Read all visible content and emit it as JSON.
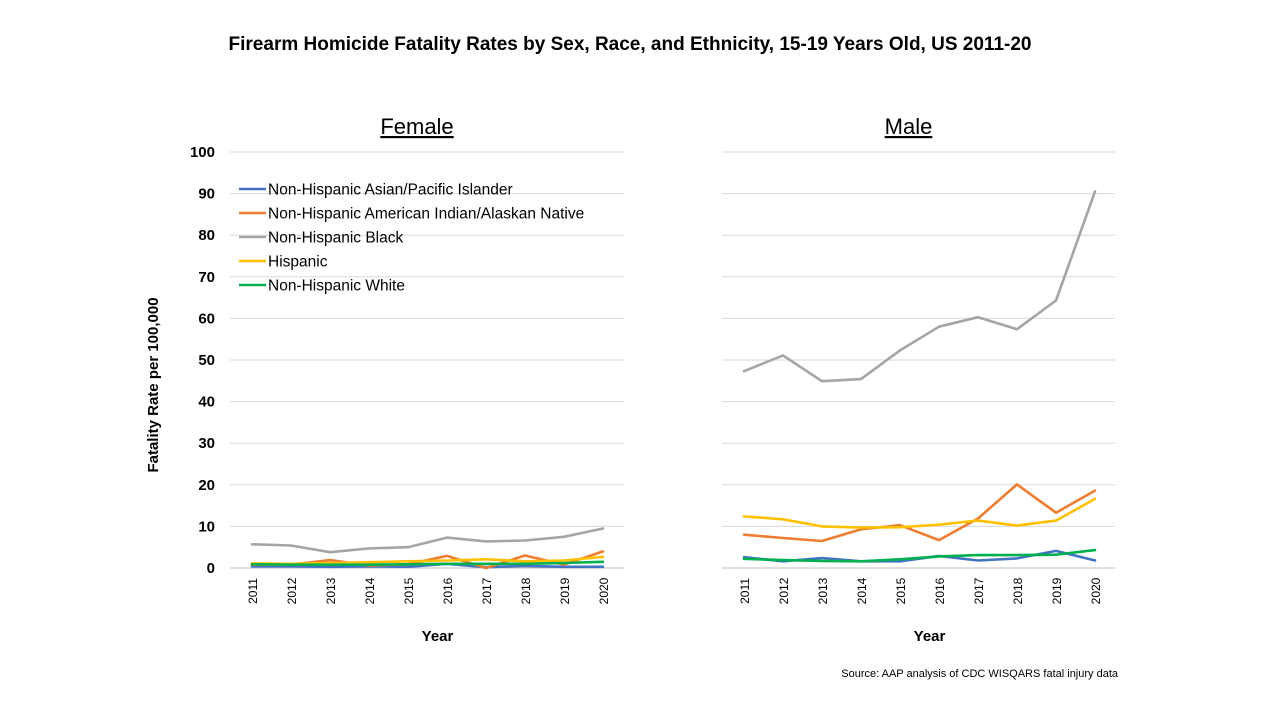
{
  "title": "Firearm Homicide Fatality Rates by Sex, Race, and Ethnicity, 15-19 Years Old, US 2011-20",
  "source": "Source: AAP analysis of CDC WISQARS fatal injury data",
  "colors": {
    "Non-Hispanic Asian/Pacific  Islander": "#4472C4",
    "Non-Hispanic American Indian/Alaskan Native": "#ED7D31",
    "Non-Hispanic Black": "#A5A5A5",
    "Hispanic": "#FFC000",
    "Non-Hispanic White": "#00B050"
  },
  "chart_data": [
    {
      "type": "line",
      "title": "Female",
      "xlabel": "Year",
      "ylabel": "Fatality Rate per 100,000",
      "ylim": [
        0,
        100
      ],
      "yticks": [
        0,
        10,
        20,
        30,
        40,
        50,
        60,
        70,
        80,
        90,
        100
      ],
      "grid": true,
      "legend": "top-left",
      "x": [
        "2011",
        "2012",
        "2013",
        "2014",
        "2015",
        "2016",
        "2017",
        "2018",
        "2019",
        "2020"
      ],
      "series": [
        {
          "name": "Non-Hispanic Asian/Pacific  Islander",
          "values": [
            0.4,
            0.4,
            0.3,
            0.4,
            0.3,
            1.0,
            0.2,
            0.5,
            0.3,
            0.3
          ]
        },
        {
          "name": "Non-Hispanic American Indian/Alaskan Native",
          "values": [
            0.8,
            0.8,
            1.9,
            0.6,
            0.9,
            2.9,
            0.0,
            3.0,
            0.8,
            4.0
          ]
        },
        {
          "name": "Non-Hispanic Black",
          "values": [
            5.7,
            5.4,
            3.8,
            4.7,
            5.0,
            7.3,
            6.4,
            6.6,
            7.5,
            9.5
          ]
        },
        {
          "name": "Hispanic",
          "values": [
            1.1,
            1.0,
            1.2,
            1.4,
            1.6,
            1.8,
            2.1,
            1.6,
            1.8,
            2.7
          ]
        },
        {
          "name": "Non-Hispanic White",
          "values": [
            0.9,
            0.8,
            0.8,
            0.8,
            0.9,
            1.0,
            1.0,
            1.0,
            1.2,
            1.5
          ]
        }
      ]
    },
    {
      "type": "line",
      "title": "Male",
      "xlabel": "Year",
      "ylabel": "",
      "ylim": [
        0,
        100
      ],
      "grid": true,
      "x": [
        "2011",
        "2012",
        "2013",
        "2014",
        "2015",
        "2016",
        "2017",
        "2018",
        "2019",
        "2020"
      ],
      "series": [
        {
          "name": "Non-Hispanic Asian/Pacific  Islander",
          "values": [
            2.6,
            1.6,
            2.4,
            1.6,
            1.6,
            2.9,
            1.8,
            2.3,
            4.1,
            1.8
          ]
        },
        {
          "name": "Non-Hispanic American Indian/Alaskan Native",
          "values": [
            8.0,
            7.2,
            6.5,
            9.3,
            10.3,
            6.7,
            11.9,
            20.1,
            13.3,
            18.6
          ]
        },
        {
          "name": "Non-Hispanic Black",
          "values": [
            47.3,
            51.1,
            44.9,
            45.4,
            52.3,
            58.0,
            60.3,
            57.4,
            64.3,
            90.5
          ]
        },
        {
          "name": "Hispanic",
          "values": [
            12.4,
            11.7,
            10.0,
            9.7,
            9.8,
            10.4,
            11.4,
            10.2,
            11.4,
            16.6
          ]
        },
        {
          "name": "Non-Hispanic White",
          "values": [
            2.2,
            1.9,
            1.7,
            1.6,
            2.1,
            2.8,
            3.1,
            3.1,
            3.2,
            4.3
          ]
        }
      ]
    }
  ]
}
